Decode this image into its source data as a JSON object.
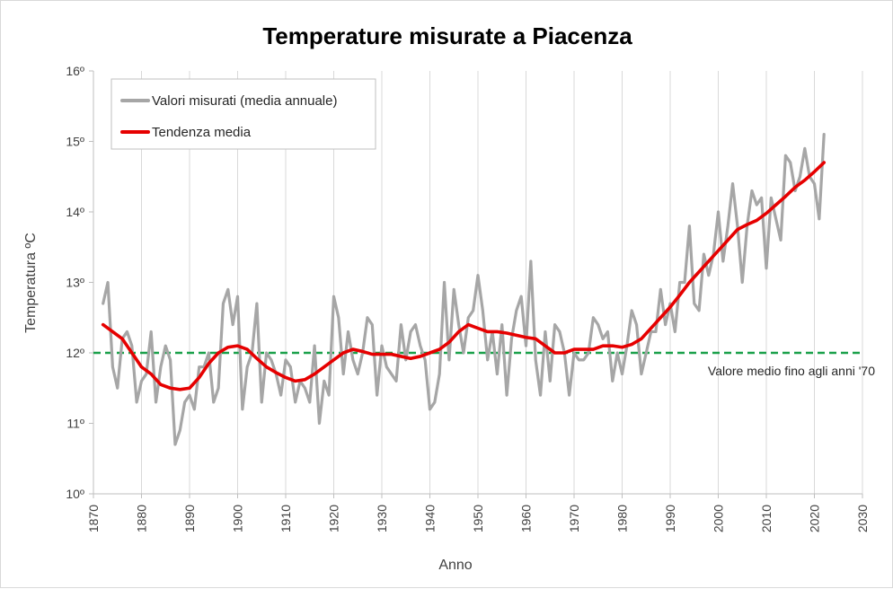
{
  "chart_data": {
    "type": "line",
    "title": "Temperature misurate a Piacenza",
    "xlabel": "Anno",
    "ylabel": "Temperatura ºC",
    "xlim": [
      1870,
      2030
    ],
    "ylim": [
      10,
      16
    ],
    "x_ticks": [
      "1870",
      "1880",
      "1890",
      "1900",
      "1910",
      "1920",
      "1930",
      "1940",
      "1950",
      "1960",
      "1970",
      "1980",
      "1990",
      "2000",
      "2010",
      "2020",
      "2030"
    ],
    "y_ticks": [
      "10º",
      "11º",
      "12º",
      "13º",
      "14º",
      "15º",
      "16º"
    ],
    "grid": "vertical",
    "legend_position": "top-left",
    "colors": {
      "measured": "#a6a6a6",
      "trend": "#e60000",
      "reference": "#1aa04a"
    },
    "series": [
      {
        "name": "Valori misurati (media annuale)",
        "x": [
          1872,
          1873,
          1874,
          1875,
          1876,
          1877,
          1878,
          1879,
          1880,
          1881,
          1882,
          1883,
          1884,
          1885,
          1886,
          1887,
          1888,
          1889,
          1890,
          1891,
          1892,
          1893,
          1894,
          1895,
          1896,
          1897,
          1898,
          1899,
          1900,
          1901,
          1902,
          1903,
          1904,
          1905,
          1906,
          1907,
          1908,
          1909,
          1910,
          1911,
          1912,
          1913,
          1914,
          1915,
          1916,
          1917,
          1918,
          1919,
          1920,
          1921,
          1922,
          1923,
          1924,
          1925,
          1926,
          1927,
          1928,
          1929,
          1930,
          1931,
          1932,
          1933,
          1934,
          1935,
          1936,
          1937,
          1938,
          1939,
          1940,
          1941,
          1942,
          1943,
          1944,
          1945,
          1946,
          1947,
          1948,
          1949,
          1950,
          1951,
          1952,
          1953,
          1954,
          1955,
          1956,
          1957,
          1958,
          1959,
          1960,
          1961,
          1962,
          1963,
          1964,
          1965,
          1966,
          1967,
          1968,
          1969,
          1970,
          1971,
          1972,
          1973,
          1974,
          1975,
          1976,
          1977,
          1978,
          1979,
          1980,
          1981,
          1982,
          1983,
          1984,
          1985,
          1986,
          1987,
          1988,
          1989,
          1990,
          1991,
          1992,
          1993,
          1994,
          1995,
          1996,
          1997,
          1998,
          1999,
          2000,
          2001,
          2002,
          2003,
          2004,
          2005,
          2006,
          2007,
          2008,
          2009,
          2010,
          2011,
          2012,
          2013,
          2014,
          2015,
          2016,
          2017,
          2018,
          2019,
          2020,
          2021,
          2022
        ],
        "values": [
          12.7,
          13.0,
          11.8,
          11.5,
          12.2,
          12.3,
          12.1,
          11.3,
          11.6,
          11.7,
          12.3,
          11.3,
          11.8,
          12.1,
          11.9,
          10.7,
          10.9,
          11.3,
          11.4,
          11.2,
          11.8,
          11.8,
          12.0,
          11.3,
          11.5,
          12.7,
          12.9,
          12.4,
          12.8,
          11.2,
          11.8,
          12.0,
          12.7,
          11.3,
          12.0,
          11.9,
          11.7,
          11.4,
          11.9,
          11.8,
          11.3,
          11.6,
          11.5,
          11.3,
          12.1,
          11.0,
          11.6,
          11.4,
          12.8,
          12.5,
          11.7,
          12.3,
          11.9,
          11.7,
          12.0,
          12.5,
          12.4,
          11.4,
          12.1,
          11.8,
          11.7,
          11.6,
          12.4,
          11.9,
          12.3,
          12.4,
          12.1,
          11.9,
          11.2,
          11.3,
          11.7,
          13.0,
          11.9,
          12.9,
          12.4,
          12.0,
          12.5,
          12.6,
          13.1,
          12.6,
          11.9,
          12.3,
          11.7,
          12.4,
          11.4,
          12.2,
          12.6,
          12.8,
          12.1,
          13.3,
          11.9,
          11.4,
          12.3,
          11.6,
          12.4,
          12.3,
          12.0,
          11.4,
          12.0,
          11.9,
          11.9,
          12.0,
          12.5,
          12.4,
          12.2,
          12.3,
          11.6,
          12.0,
          11.7,
          12.1,
          12.6,
          12.4,
          11.7,
          12.0,
          12.3,
          12.3,
          12.9,
          12.4,
          12.7,
          12.3,
          13.0,
          13.0,
          13.8,
          12.7,
          12.6,
          13.4,
          13.1,
          13.4,
          14.0,
          13.3,
          13.8,
          14.4,
          13.8,
          13.0,
          13.8,
          14.3,
          14.1,
          14.2,
          13.2,
          14.2,
          13.9,
          13.6,
          14.8,
          14.7,
          14.3,
          14.5,
          14.9,
          14.5,
          14.4,
          13.9,
          15.1
        ]
      },
      {
        "name": "Tendenza media",
        "x": [
          1872,
          1874,
          1876,
          1878,
          1880,
          1882,
          1884,
          1886,
          1888,
          1890,
          1892,
          1894,
          1896,
          1898,
          1900,
          1902,
          1904,
          1906,
          1908,
          1910,
          1912,
          1914,
          1916,
          1918,
          1920,
          1922,
          1924,
          1926,
          1928,
          1930,
          1932,
          1934,
          1936,
          1938,
          1940,
          1942,
          1944,
          1946,
          1948,
          1950,
          1952,
          1954,
          1956,
          1958,
          1960,
          1962,
          1964,
          1966,
          1968,
          1970,
          1972,
          1974,
          1976,
          1978,
          1980,
          1982,
          1984,
          1986,
          1988,
          1990,
          1992,
          1994,
          1996,
          1998,
          2000,
          2002,
          2004,
          2006,
          2008,
          2010,
          2012,
          2014,
          2016,
          2018,
          2020,
          2022
        ],
        "values": [
          12.4,
          12.3,
          12.2,
          12.0,
          11.8,
          11.7,
          11.55,
          11.5,
          11.48,
          11.5,
          11.65,
          11.85,
          12.0,
          12.08,
          12.1,
          12.05,
          11.92,
          11.8,
          11.72,
          11.65,
          11.6,
          11.62,
          11.7,
          11.8,
          11.9,
          12.0,
          12.05,
          12.02,
          11.98,
          11.98,
          11.98,
          11.95,
          11.92,
          11.95,
          12.0,
          12.05,
          12.15,
          12.3,
          12.4,
          12.35,
          12.3,
          12.3,
          12.28,
          12.25,
          12.22,
          12.2,
          12.1,
          12.0,
          12.0,
          12.05,
          12.05,
          12.05,
          12.1,
          12.1,
          12.08,
          12.12,
          12.2,
          12.35,
          12.5,
          12.65,
          12.82,
          13.0,
          13.15,
          13.3,
          13.45,
          13.6,
          13.75,
          13.82,
          13.88,
          13.98,
          14.1,
          14.22,
          14.35,
          14.45,
          14.57,
          14.7
        ]
      }
    ],
    "reference_line": {
      "y": 12.0,
      "label": "Valore medio fino agli anni '70"
    }
  }
}
